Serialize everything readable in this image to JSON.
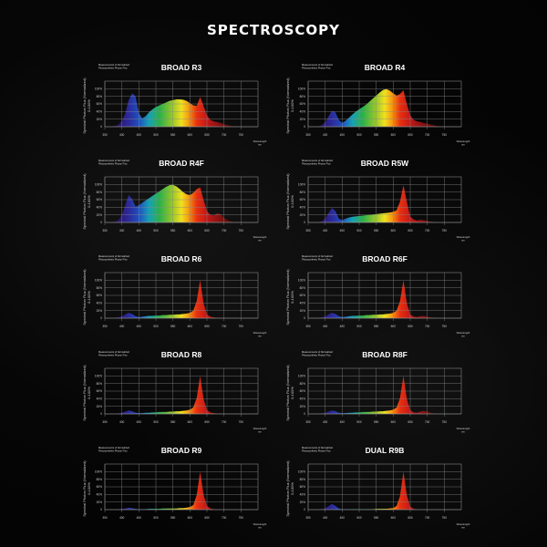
{
  "page_title": "SPECTROSCOPY",
  "common": {
    "subtitle_line1": "Measurements of Normalized",
    "subtitle_line2": "Photosynthetic Photon Flux",
    "ylabel_line1": "Spectral Photon Flux (Normalized)",
    "ylabel_line2": "0-100%",
    "xlabel_line1": "Wavelength",
    "xlabel_line2": "nm"
  },
  "spectrum_colors": [
    "#2a1060",
    "#2c2a9a",
    "#1f4fc0",
    "#17a0b4",
    "#2ab04a",
    "#9cc828",
    "#f0e020",
    "#f5a010",
    "#e83010",
    "#c01818",
    "#701010",
    "#300808"
  ],
  "chart_data": [
    {
      "type": "area",
      "title": "BROAD R3",
      "xlim": [
        350,
        800
      ],
      "ylim": [
        0,
        120
      ],
      "xticks": [
        350,
        400,
        450,
        500,
        550,
        600,
        650,
        700,
        750
      ],
      "yticks": [
        "0",
        "20%",
        "40%",
        "60%",
        "80%",
        "100%"
      ],
      "grid": true,
      "x": [
        370,
        380,
        390,
        400,
        410,
        420,
        430,
        440,
        450,
        460,
        470,
        480,
        490,
        500,
        510,
        520,
        530,
        540,
        550,
        560,
        570,
        580,
        590,
        600,
        610,
        620,
        630,
        640,
        650,
        660,
        670,
        680,
        690,
        700,
        710,
        720,
        730,
        740,
        750,
        760
      ],
      "y": [
        0,
        2,
        5,
        15,
        35,
        70,
        88,
        80,
        35,
        22,
        28,
        38,
        46,
        52,
        56,
        60,
        64,
        68,
        70,
        72,
        72,
        71,
        68,
        62,
        56,
        55,
        78,
        55,
        30,
        18,
        14,
        12,
        10,
        7,
        4,
        2,
        1,
        0,
        0,
        0
      ]
    },
    {
      "type": "area",
      "title": "BROAD R4",
      "xlim": [
        350,
        800
      ],
      "ylim": [
        0,
        120
      ],
      "xticks": [
        350,
        400,
        450,
        500,
        550,
        600,
        650,
        700,
        750
      ],
      "yticks": [
        "0",
        "20%",
        "40%",
        "60%",
        "80%",
        "100%"
      ],
      "grid": true,
      "x": [
        370,
        380,
        390,
        400,
        410,
        420,
        430,
        440,
        450,
        460,
        470,
        480,
        490,
        500,
        510,
        520,
        530,
        540,
        550,
        560,
        570,
        580,
        590,
        600,
        610,
        620,
        630,
        640,
        650,
        660,
        670,
        680,
        690,
        700,
        710,
        720,
        730,
        740,
        750,
        760
      ],
      "y": [
        0,
        1,
        4,
        12,
        28,
        42,
        38,
        18,
        10,
        16,
        24,
        32,
        40,
        46,
        52,
        58,
        66,
        74,
        82,
        90,
        97,
        99,
        95,
        88,
        82,
        86,
        96,
        60,
        30,
        18,
        14,
        12,
        10,
        8,
        6,
        4,
        2,
        1,
        0,
        0
      ]
    },
    {
      "type": "area",
      "title": "BROAD R4F",
      "xlim": [
        350,
        800
      ],
      "ylim": [
        0,
        120
      ],
      "xticks": [
        350,
        400,
        450,
        500,
        550,
        600,
        650,
        700,
        750
      ],
      "yticks": [
        "0",
        "20%",
        "40%",
        "60%",
        "80%",
        "100%"
      ],
      "grid": true,
      "x": [
        370,
        380,
        390,
        400,
        410,
        420,
        430,
        440,
        450,
        460,
        470,
        480,
        490,
        500,
        510,
        520,
        530,
        540,
        550,
        560,
        570,
        580,
        590,
        600,
        610,
        620,
        630,
        640,
        650,
        660,
        670,
        680,
        690,
        700,
        710,
        720,
        730,
        740,
        750,
        760
      ],
      "y": [
        0,
        2,
        6,
        20,
        45,
        72,
        62,
        42,
        45,
        52,
        58,
        64,
        70,
        76,
        82,
        88,
        94,
        98,
        99,
        95,
        88,
        80,
        74,
        72,
        78,
        88,
        92,
        60,
        30,
        20,
        18,
        24,
        22,
        12,
        6,
        3,
        1,
        0,
        0,
        0
      ]
    },
    {
      "type": "area",
      "title": "BROAD R5W",
      "xlim": [
        350,
        800
      ],
      "ylim": [
        0,
        120
      ],
      "xticks": [
        350,
        400,
        450,
        500,
        550,
        600,
        650,
        700,
        750
      ],
      "yticks": [
        "0",
        "20%",
        "40%",
        "60%",
        "80%",
        "100%"
      ],
      "grid": true,
      "x": [
        370,
        380,
        390,
        400,
        410,
        420,
        430,
        440,
        450,
        460,
        470,
        480,
        490,
        500,
        510,
        520,
        530,
        540,
        550,
        560,
        570,
        580,
        590,
        600,
        610,
        620,
        630,
        640,
        650,
        660,
        670,
        680,
        690,
        700,
        710,
        720,
        730,
        740,
        750,
        760
      ],
      "y": [
        0,
        1,
        3,
        10,
        25,
        38,
        30,
        10,
        6,
        10,
        13,
        15,
        16,
        17,
        18,
        19,
        20,
        21,
        22,
        23,
        24,
        25,
        26,
        28,
        32,
        55,
        98,
        55,
        15,
        8,
        5,
        7,
        6,
        4,
        2,
        1,
        0,
        0,
        0,
        0
      ]
    },
    {
      "type": "area",
      "title": "BROAD R6",
      "xlim": [
        350,
        800
      ],
      "ylim": [
        0,
        120
      ],
      "xticks": [
        350,
        400,
        450,
        500,
        550,
        600,
        650,
        700,
        750
      ],
      "yticks": [
        "0",
        "20%",
        "40%",
        "60%",
        "80%",
        "100%"
      ],
      "grid": true,
      "x": [
        370,
        380,
        390,
        400,
        410,
        420,
        430,
        440,
        450,
        460,
        470,
        480,
        490,
        500,
        510,
        520,
        530,
        540,
        550,
        560,
        570,
        580,
        590,
        600,
        610,
        620,
        630,
        640,
        650,
        660,
        670,
        680,
        690,
        700,
        710,
        720,
        730,
        740,
        750,
        760
      ],
      "y": [
        0,
        1,
        2,
        5,
        10,
        14,
        11,
        5,
        3,
        4,
        5,
        6,
        6,
        7,
        7,
        8,
        8,
        9,
        9,
        10,
        10,
        11,
        12,
        14,
        20,
        45,
        100,
        40,
        10,
        4,
        2,
        1,
        1,
        1,
        0,
        0,
        0,
        0,
        0,
        0
      ]
    },
    {
      "type": "area",
      "title": "BROAD R6F",
      "xlim": [
        350,
        800
      ],
      "ylim": [
        0,
        120
      ],
      "xticks": [
        350,
        400,
        450,
        500,
        550,
        600,
        650,
        700,
        750
      ],
      "yticks": [
        "0",
        "20%",
        "40%",
        "60%",
        "80%",
        "100%"
      ],
      "grid": true,
      "x": [
        370,
        380,
        390,
        400,
        410,
        420,
        430,
        440,
        450,
        460,
        470,
        480,
        490,
        500,
        510,
        520,
        530,
        540,
        550,
        560,
        570,
        580,
        590,
        600,
        610,
        620,
        630,
        640,
        650,
        660,
        670,
        680,
        690,
        700,
        710,
        720,
        730,
        740,
        750,
        760
      ],
      "y": [
        0,
        1,
        2,
        5,
        10,
        14,
        11,
        5,
        3,
        4,
        5,
        6,
        6,
        7,
        7,
        8,
        8,
        9,
        9,
        10,
        10,
        11,
        12,
        14,
        20,
        45,
        100,
        40,
        10,
        4,
        3,
        5,
        6,
        4,
        2,
        1,
        0,
        0,
        0,
        0
      ]
    },
    {
      "type": "area",
      "title": "BROAD R8",
      "xlim": [
        350,
        800
      ],
      "ylim": [
        0,
        120
      ],
      "xticks": [
        350,
        400,
        450,
        500,
        550,
        600,
        650,
        700,
        750
      ],
      "yticks": [
        "0",
        "20%",
        "40%",
        "60%",
        "80%",
        "100%"
      ],
      "grid": true,
      "x": [
        370,
        380,
        390,
        400,
        410,
        420,
        430,
        440,
        450,
        460,
        470,
        480,
        490,
        500,
        510,
        520,
        530,
        540,
        550,
        560,
        570,
        580,
        590,
        600,
        610,
        620,
        630,
        640,
        650,
        660,
        670,
        680,
        690,
        700,
        710,
        720,
        730,
        740,
        750,
        760
      ],
      "y": [
        0,
        0,
        1,
        3,
        6,
        9,
        7,
        3,
        2,
        2,
        3,
        3,
        4,
        4,
        5,
        5,
        5,
        6,
        6,
        7,
        7,
        8,
        9,
        11,
        17,
        42,
        100,
        40,
        10,
        4,
        2,
        1,
        1,
        0,
        0,
        0,
        0,
        0,
        0,
        0
      ]
    },
    {
      "type": "area",
      "title": "BROAD R8F",
      "xlim": [
        350,
        800
      ],
      "ylim": [
        0,
        120
      ],
      "xticks": [
        350,
        400,
        450,
        500,
        550,
        600,
        650,
        700,
        750
      ],
      "yticks": [
        "0",
        "20%",
        "40%",
        "60%",
        "80%",
        "100%"
      ],
      "grid": true,
      "x": [
        370,
        380,
        390,
        400,
        410,
        420,
        430,
        440,
        450,
        460,
        470,
        480,
        490,
        500,
        510,
        520,
        530,
        540,
        550,
        560,
        570,
        580,
        590,
        600,
        610,
        620,
        630,
        640,
        650,
        660,
        670,
        680,
        690,
        700,
        710,
        720,
        730,
        740,
        750,
        760
      ],
      "y": [
        0,
        0,
        1,
        3,
        6,
        9,
        7,
        3,
        2,
        2,
        3,
        3,
        4,
        4,
        5,
        5,
        5,
        6,
        6,
        7,
        7,
        8,
        9,
        11,
        17,
        42,
        100,
        40,
        10,
        4,
        3,
        6,
        8,
        6,
        3,
        1,
        0,
        0,
        0,
        0
      ]
    },
    {
      "type": "area",
      "title": "BROAD R9",
      "xlim": [
        350,
        800
      ],
      "ylim": [
        0,
        120
      ],
      "xticks": [
        350,
        400,
        450,
        500,
        550,
        600,
        650,
        700,
        750
      ],
      "yticks": [
        "0",
        "20%",
        "40%",
        "60%",
        "80%",
        "100%"
      ],
      "grid": true,
      "x": [
        370,
        380,
        390,
        400,
        410,
        420,
        430,
        440,
        450,
        460,
        470,
        480,
        490,
        500,
        510,
        520,
        530,
        540,
        550,
        560,
        570,
        580,
        590,
        600,
        610,
        620,
        630,
        640,
        650,
        660,
        670,
        680,
        690,
        700,
        710,
        720,
        730,
        740,
        750,
        760
      ],
      "y": [
        0,
        0,
        1,
        2,
        3,
        5,
        4,
        2,
        1,
        1,
        1,
        2,
        2,
        2,
        2,
        3,
        3,
        3,
        3,
        3,
        4,
        4,
        5,
        7,
        12,
        38,
        100,
        40,
        10,
        3,
        1,
        0,
        0,
        0,
        0,
        0,
        0,
        0,
        0,
        0
      ]
    },
    {
      "type": "area",
      "title": "DUAL R9B",
      "xlim": [
        350,
        800
      ],
      "ylim": [
        0,
        120
      ],
      "xticks": [
        350,
        400,
        450,
        500,
        550,
        600,
        650,
        700,
        750
      ],
      "yticks": [
        "0",
        "20%",
        "40%",
        "60%",
        "80%",
        "100%"
      ],
      "grid": true,
      "x": [
        370,
        380,
        390,
        400,
        410,
        420,
        430,
        440,
        450,
        460,
        470,
        480,
        490,
        500,
        510,
        520,
        530,
        540,
        550,
        560,
        570,
        580,
        590,
        600,
        610,
        620,
        630,
        640,
        650,
        660,
        670,
        680,
        690,
        700,
        710,
        720,
        730,
        740,
        750,
        760
      ],
      "y": [
        0,
        0,
        1,
        4,
        9,
        15,
        10,
        3,
        1,
        1,
        1,
        1,
        1,
        1,
        1,
        1,
        1,
        1,
        2,
        2,
        2,
        2,
        3,
        4,
        10,
        36,
        100,
        38,
        8,
        2,
        1,
        0,
        0,
        0,
        0,
        0,
        0,
        0,
        0,
        0
      ]
    }
  ]
}
